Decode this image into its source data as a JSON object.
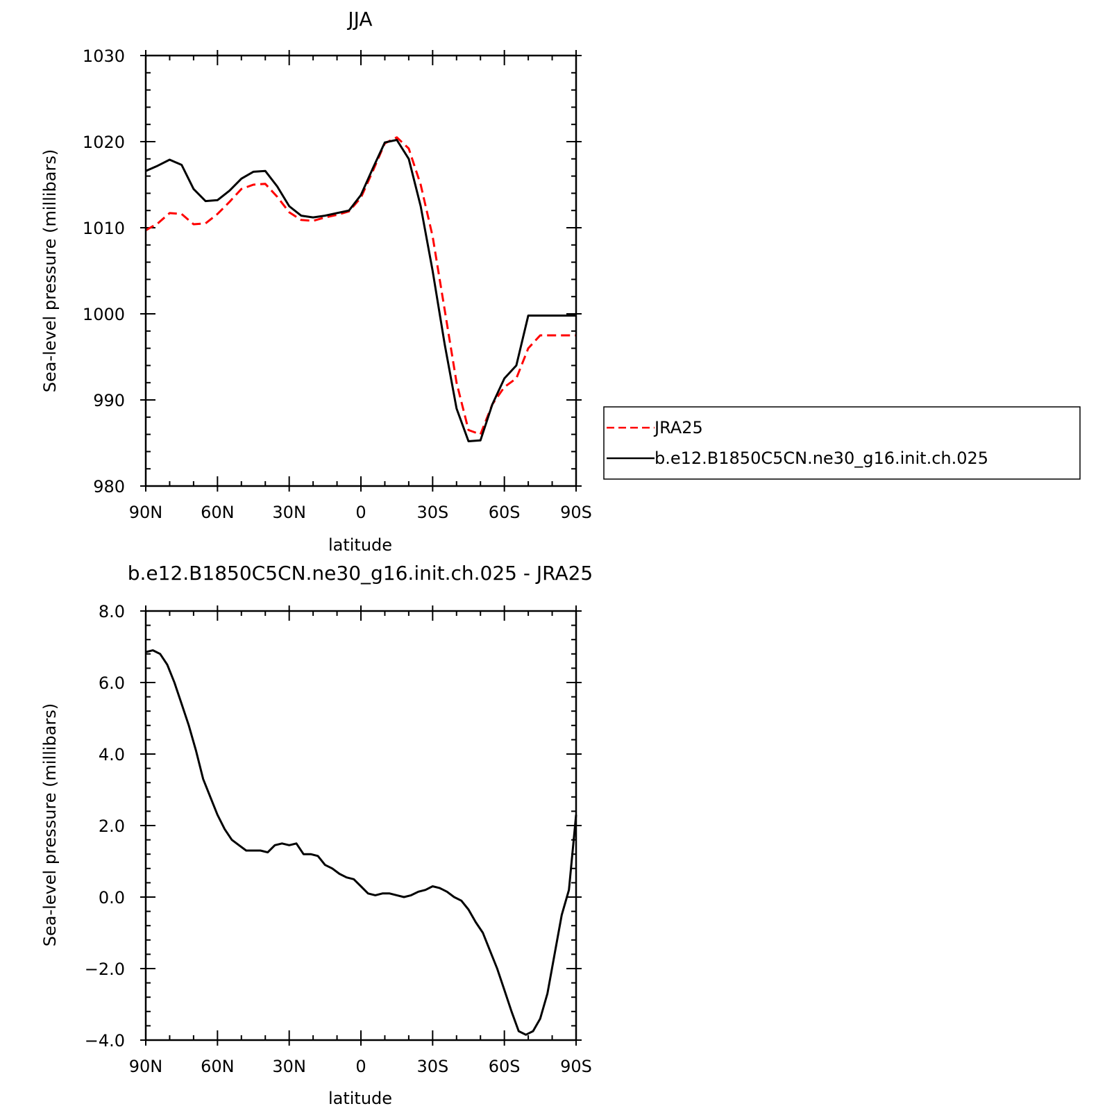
{
  "chart_data": [
    {
      "type": "line",
      "title": "JJA",
      "xlabel": "latitude",
      "ylabel": "Sea-level pressure (millibars)",
      "x": [
        90,
        85,
        80,
        75,
        70,
        65,
        60,
        55,
        50,
        45,
        40,
        35,
        30,
        25,
        20,
        15,
        10,
        5,
        0,
        -5,
        -10,
        -15,
        -20,
        -25,
        -30,
        -35,
        -40,
        -45,
        -50,
        -55,
        -60,
        -65,
        -70,
        -75,
        -80,
        -85,
        -90
      ],
      "xlim": [
        90,
        -90
      ],
      "xticks": [
        90,
        60,
        30,
        0,
        -30,
        -60,
        -90
      ],
      "xticklabels": [
        "90N",
        "60N",
        "30N",
        "0",
        "30S",
        "60S",
        "90S"
      ],
      "ylim": [
        980,
        1030
      ],
      "yticks": [
        980,
        990,
        1000,
        1010,
        1020,
        1030
      ],
      "yticklabels": [
        "980",
        "990",
        "1000",
        "1010",
        "1020",
        "1030"
      ],
      "series": [
        {
          "name": "JRA25",
          "color": "#ff0000",
          "dash": true,
          "values": [
            1009.7,
            1010.5,
            1011.7,
            1011.6,
            1010.4,
            1010.5,
            1011.6,
            1013.0,
            1014.5,
            1015.0,
            1015.1,
            1013.6,
            1011.8,
            1010.9,
            1010.8,
            1011.2,
            1011.5,
            1011.9,
            1013.5,
            1016.6,
            1019.8,
            1020.5,
            1019.2,
            1015.0,
            1009.0,
            1000.5,
            992.0,
            986.5,
            986.0,
            989.5,
            991.5,
            992.5,
            996.0,
            997.5,
            997.5,
            997.5,
            997.5
          ]
        },
        {
          "name": "b.e12.B1850C5CN.ne30_g16.init.ch.025",
          "color": "#000000",
          "dash": false,
          "values": [
            1016.6,
            1017.2,
            1017.9,
            1017.3,
            1014.5,
            1013.1,
            1013.2,
            1014.3,
            1015.7,
            1016.5,
            1016.6,
            1014.8,
            1012.5,
            1011.4,
            1011.2,
            1011.4,
            1011.7,
            1012.0,
            1013.8,
            1016.9,
            1019.9,
            1020.2,
            1018.0,
            1012.5,
            1005.0,
            996.5,
            989.0,
            985.2,
            985.3,
            989.5,
            992.5,
            994.0,
            999.8,
            999.8,
            999.8,
            999.8,
            999.8
          ]
        }
      ],
      "legend": "right"
    },
    {
      "type": "line",
      "title": "b.e12.B1850C5CN.ne30_g16.init.ch.025 - JRA25",
      "xlabel": "latitude",
      "ylabel": "Sea-level pressure (millibars)",
      "x": [
        90,
        87,
        84,
        81,
        78,
        75,
        72,
        69,
        66,
        63,
        60,
        57,
        54,
        51,
        48,
        45,
        42,
        39,
        36,
        33,
        30,
        27,
        24,
        21,
        18,
        15,
        12,
        9,
        6,
        3,
        0,
        -3,
        -6,
        -9,
        -12,
        -15,
        -18,
        -21,
        -24,
        -27,
        -30,
        -33,
        -36,
        -39,
        -42,
        -45,
        -48,
        -51,
        -54,
        -57,
        -60,
        -63,
        -66,
        -69,
        -72,
        -75,
        -78,
        -81,
        -84,
        -87,
        -90
      ],
      "xlim": [
        90,
        -90
      ],
      "xticks": [
        90,
        60,
        30,
        0,
        -30,
        -60,
        -90
      ],
      "xticklabels": [
        "90N",
        "60N",
        "30N",
        "0",
        "30S",
        "60S",
        "90S"
      ],
      "ylim": [
        -4.0,
        8.0
      ],
      "yticks": [
        -4.0,
        -2.0,
        0.0,
        2.0,
        4.0,
        6.0,
        8.0
      ],
      "yticklabels": [
        "−4.0",
        "−2.0",
        "0.0",
        "2.0",
        "4.0",
        "6.0",
        "8.0"
      ],
      "series": [
        {
          "color": "#000000",
          "values": [
            6.85,
            6.9,
            6.8,
            6.5,
            6.0,
            5.4,
            4.8,
            4.1,
            3.3,
            2.8,
            2.3,
            1.9,
            1.6,
            1.45,
            1.3,
            1.3,
            1.3,
            1.25,
            1.45,
            1.5,
            1.45,
            1.5,
            1.2,
            1.2,
            1.15,
            0.9,
            0.8,
            0.65,
            0.55,
            0.5,
            0.3,
            0.1,
            0.05,
            0.1,
            0.1,
            0.05,
            0.0,
            0.05,
            0.15,
            0.2,
            0.3,
            0.25,
            0.15,
            0.0,
            -0.1,
            -0.35,
            -0.7,
            -1.0,
            -1.5,
            -2.0,
            -2.6,
            -3.2,
            -3.75,
            -3.85,
            -3.75,
            -3.4,
            -2.7,
            -1.6,
            -0.5,
            0.2,
            2.3
          ]
        }
      ]
    }
  ]
}
